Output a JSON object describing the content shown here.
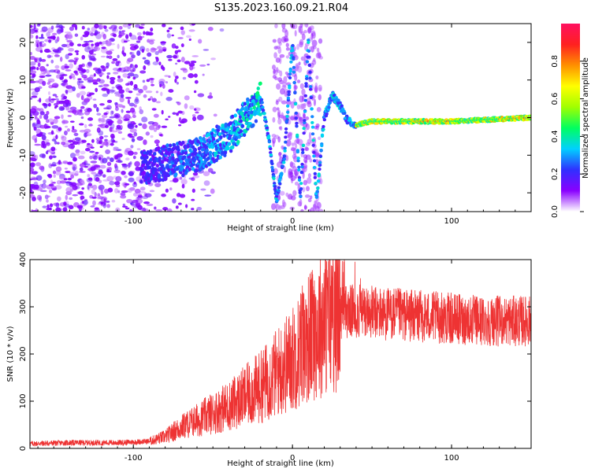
{
  "title": "S135.2023.160.09.21.R04",
  "chart_data": [
    {
      "type": "heatmap",
      "xlabel": "Height of straight line (km)",
      "ylabel": "Frequency (Hz)",
      "xlim": [
        -165,
        150
      ],
      "ylim": [
        -25,
        25
      ],
      "xticks": [
        -100,
        0,
        100
      ],
      "yticks": [
        -20,
        -10,
        0,
        10,
        20
      ],
      "colorbar": {
        "label": "Normalized spectral amplitude",
        "range": [
          0,
          1
        ],
        "ticks": [
          "0.0",
          "0.2",
          "0.4",
          "0.6",
          "0.8"
        ],
        "colormap": [
          "#ffffff",
          "#8a00ff",
          "#3030ff",
          "#00d0ff",
          "#00ff60",
          "#a0ff00",
          "#ffff00",
          "#ff9000",
          "#ff2020",
          "#ff1060"
        ]
      },
      "ridge": {
        "description_points_x": [
          -90,
          -60,
          -40,
          -25,
          -20,
          -15,
          -10,
          -5,
          0,
          5,
          10,
          15,
          20,
          25,
          30,
          35,
          40,
          50,
          70,
          100,
          150
        ],
        "description_points_y": [
          -13,
          -10,
          -5,
          2,
          5,
          -5,
          -22,
          -10,
          20,
          -22,
          20,
          -22,
          0,
          6,
          3,
          -1,
          -2,
          -1,
          -1,
          -1,
          0
        ]
      }
    },
    {
      "type": "line",
      "xlabel": "Height of straight line (km)",
      "ylabel": "SNR (10 * v/v)",
      "xlim": [
        -165,
        150
      ],
      "ylim": [
        0,
        400
      ],
      "xticks": [
        -100,
        0,
        100
      ],
      "yticks": [
        0,
        100,
        200,
        300,
        400
      ],
      "color": "#ee3333",
      "series": [
        {
          "x": [
            -165,
            -140,
            -110,
            -90,
            -80,
            -70,
            -60,
            -40,
            -20,
            -10,
            0,
            10,
            20,
            30,
            40,
            60,
            80,
            100,
            120,
            150
          ],
          "values": [
            10,
            12,
            12,
            15,
            25,
            45,
            60,
            90,
            130,
            160,
            190,
            235,
            270,
            290,
            290,
            285,
            280,
            275,
            270,
            270
          ]
        }
      ]
    }
  ]
}
